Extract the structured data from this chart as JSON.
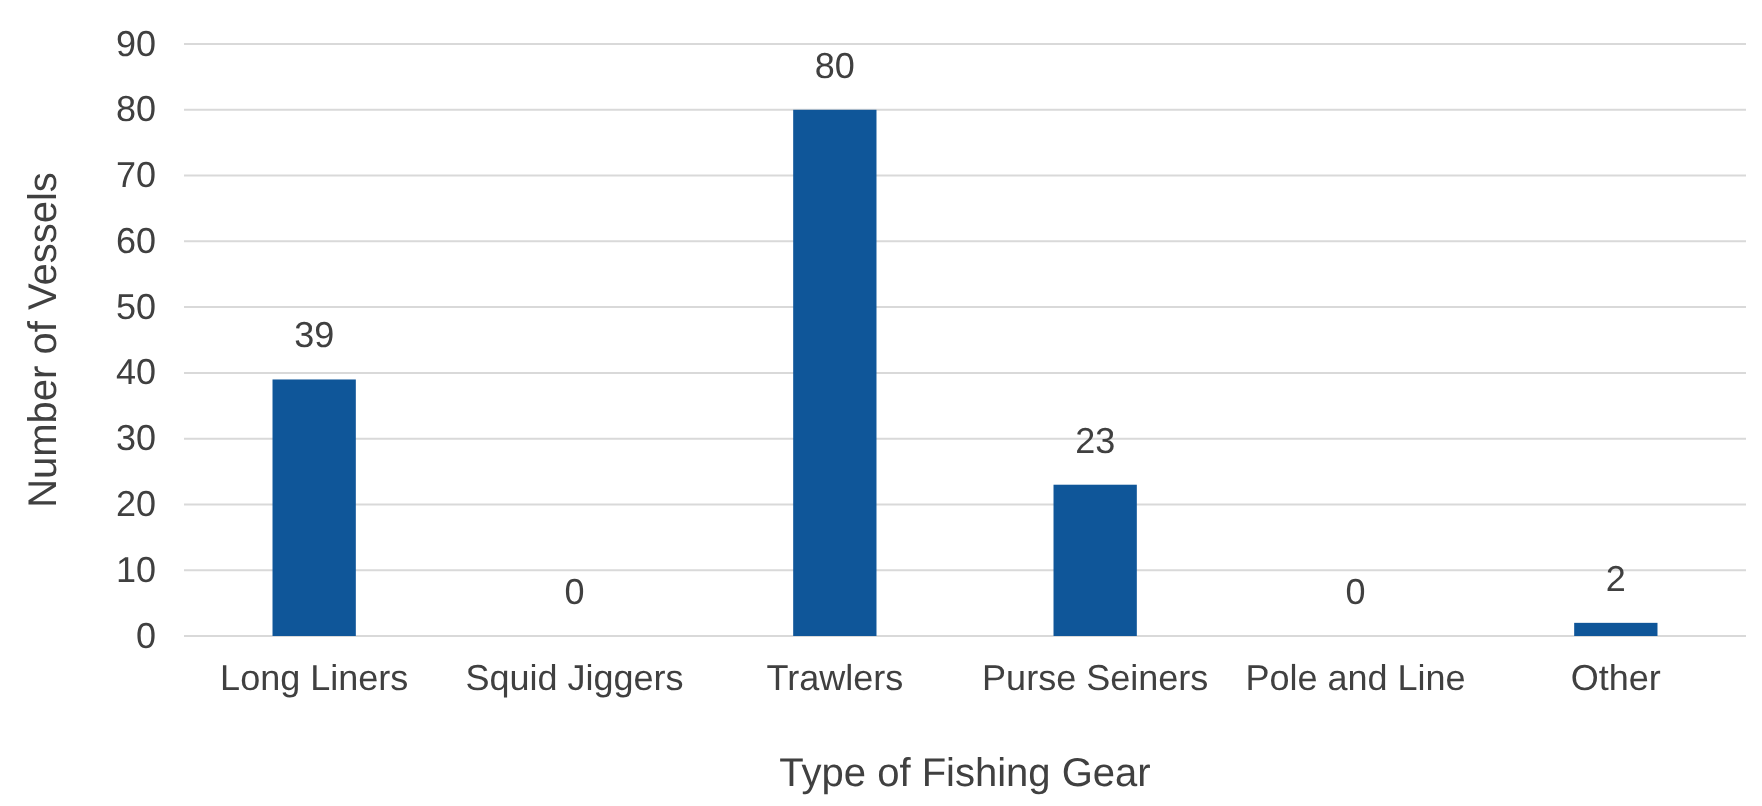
{
  "chart_data": {
    "type": "bar",
    "xlabel": "Type of Fishing Gear",
    "ylabel": "Number of Vessels",
    "categories": [
      "Long Liners",
      "Squid Jiggers",
      "Trawlers",
      "Purse Seiners",
      "Pole and Line",
      "Other"
    ],
    "values": [
      39,
      0,
      80,
      23,
      0,
      2
    ],
    "color": "#0f5699",
    "ylim": [
      0,
      90
    ],
    "yticks": [
      0,
      10,
      20,
      30,
      40,
      50,
      60,
      70,
      80,
      90
    ],
    "grid": "y",
    "data_labels": true
  }
}
